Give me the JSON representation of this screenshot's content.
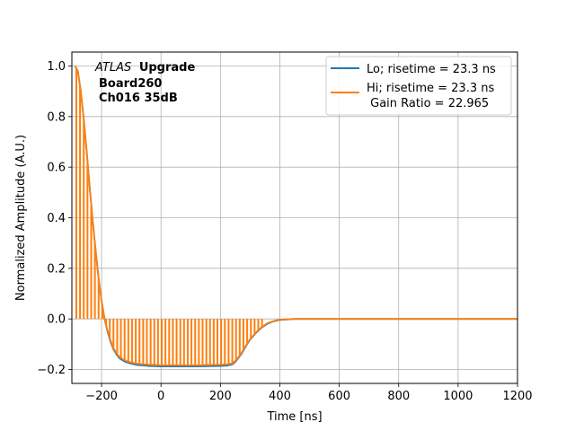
{
  "chart_data": {
    "type": "line",
    "xlabel": "Time [ns]",
    "ylabel": "Normalized Amplitude (A.U.)",
    "xlim": [
      -300,
      1200
    ],
    "ylim": [
      -0.255,
      1.055
    ],
    "xticks": [
      -200,
      0,
      200,
      400,
      600,
      800,
      1000,
      1200
    ],
    "yticks": [
      -0.2,
      0.0,
      0.2,
      0.4,
      0.6,
      0.8,
      1.0
    ],
    "xtick_labels": [
      "−200",
      "0",
      "200",
      "400",
      "600",
      "800",
      "1000",
      "1200"
    ],
    "ytick_labels": [
      "−0.2",
      "0.0",
      "0.2",
      "0.4",
      "0.6",
      "0.8",
      "1.0"
    ],
    "grid": true,
    "legend_position": "top-right",
    "annotation": {
      "italic": "ATLAS",
      "bold": "Upgrade",
      "line2": "Board260",
      "line3": "Ch016 35dB"
    },
    "colors": {
      "lo": "#1f77b4",
      "hi": "#ff7f0e",
      "grid": "#b0b0b0"
    },
    "series": [
      {
        "name": "Lo; risetime = 23.3 ns",
        "x": [
          -289,
          -280,
          -270,
          -260,
          -250,
          -240,
          -230,
          -220,
          -210,
          -200,
          -190,
          -180,
          -170,
          -160,
          -150,
          -140,
          -130,
          -120,
          -100,
          -80,
          -60,
          -40,
          -20,
          0,
          40,
          80,
          120,
          160,
          200,
          220,
          240,
          250,
          260,
          270,
          280,
          290,
          300,
          320,
          340,
          360,
          380,
          400,
          450,
          500,
          600,
          700,
          800,
          900,
          1000,
          1100,
          1200
        ],
        "y": [
          1.0,
          0.98,
          0.9,
          0.79,
          0.66,
          0.52,
          0.39,
          0.27,
          0.16,
          0.07,
          0.0,
          -0.05,
          -0.09,
          -0.12,
          -0.14,
          -0.155,
          -0.163,
          -0.17,
          -0.177,
          -0.182,
          -0.184,
          -0.186,
          -0.187,
          -0.188,
          -0.188,
          -0.188,
          -0.188,
          -0.187,
          -0.186,
          -0.185,
          -0.18,
          -0.17,
          -0.155,
          -0.14,
          -0.12,
          -0.1,
          -0.082,
          -0.055,
          -0.033,
          -0.018,
          -0.009,
          -0.004,
          0.0,
          0.0,
          0.0,
          0.0,
          0.0,
          0.0,
          0.0,
          0.0,
          0.0
        ]
      },
      {
        "name": "Hi; risetime = 23.3 ns\n Gain Ratio = 22.965",
        "x": [
          -289,
          -280,
          -270,
          -260,
          -250,
          -240,
          -230,
          -220,
          -210,
          -200,
          -190,
          -180,
          -170,
          -160,
          -150,
          -140,
          -130,
          -120,
          -100,
          -80,
          -60,
          -40,
          -20,
          0,
          40,
          80,
          120,
          160,
          200,
          220,
          240,
          250,
          260,
          270,
          280,
          290,
          300,
          320,
          340,
          360,
          380,
          400,
          450,
          500,
          600,
          700,
          800,
          900,
          1000,
          1100,
          1200
        ],
        "y": [
          1.0,
          0.98,
          0.9,
          0.79,
          0.66,
          0.52,
          0.39,
          0.27,
          0.16,
          0.07,
          0.0,
          -0.045,
          -0.085,
          -0.115,
          -0.135,
          -0.15,
          -0.158,
          -0.165,
          -0.172,
          -0.177,
          -0.179,
          -0.181,
          -0.182,
          -0.183,
          -0.183,
          -0.183,
          -0.183,
          -0.182,
          -0.181,
          -0.18,
          -0.176,
          -0.166,
          -0.152,
          -0.136,
          -0.117,
          -0.098,
          -0.08,
          -0.053,
          -0.031,
          -0.016,
          -0.008,
          -0.003,
          0.0,
          0.0,
          0.0,
          0.0,
          0.0,
          0.0,
          0.0,
          0.0,
          0.0
        ]
      }
    ],
    "hi_sample_spikes": {
      "x_start": -285,
      "x_step": 12.5,
      "x_end": 350
    }
  }
}
